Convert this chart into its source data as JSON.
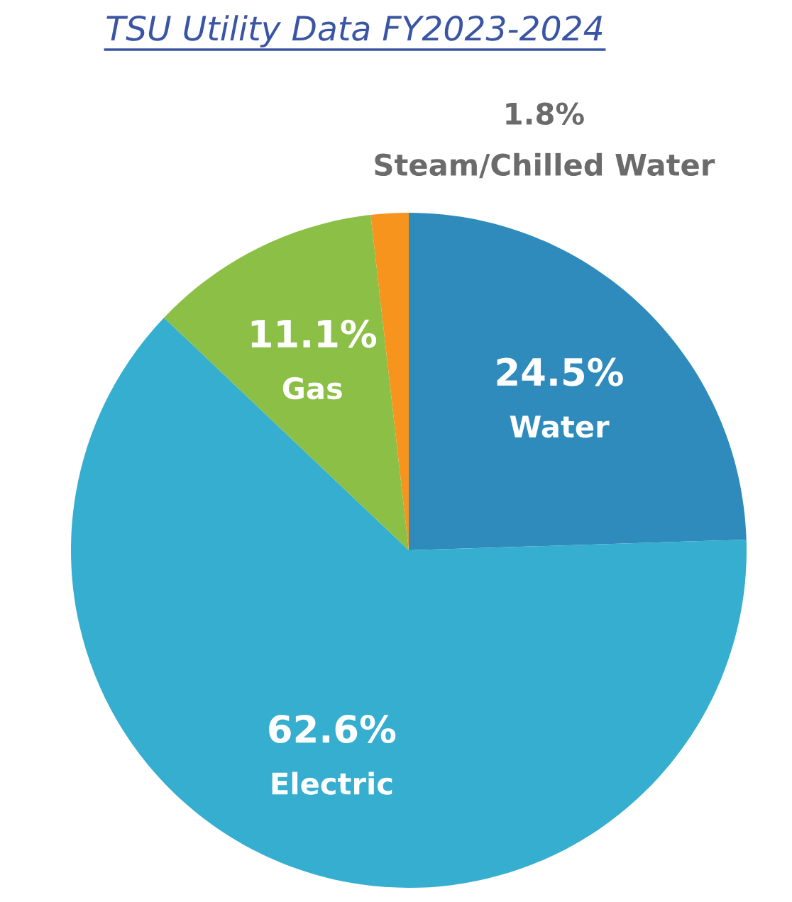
{
  "chart_data": {
    "type": "pie",
    "title": "TSU Utility Data FY2023-2024",
    "categories": [
      "Water",
      "Electric",
      "Gas",
      "Steam/Chilled Water"
    ],
    "values": [
      24.5,
      62.6,
      11.1,
      1.8
    ],
    "value_labels": [
      "24.5%",
      "62.6%",
      "11.1%",
      "1.8%"
    ],
    "colors": [
      "#2e8bbb",
      "#35aecf",
      "#8bbf45",
      "#f7941d"
    ]
  }
}
